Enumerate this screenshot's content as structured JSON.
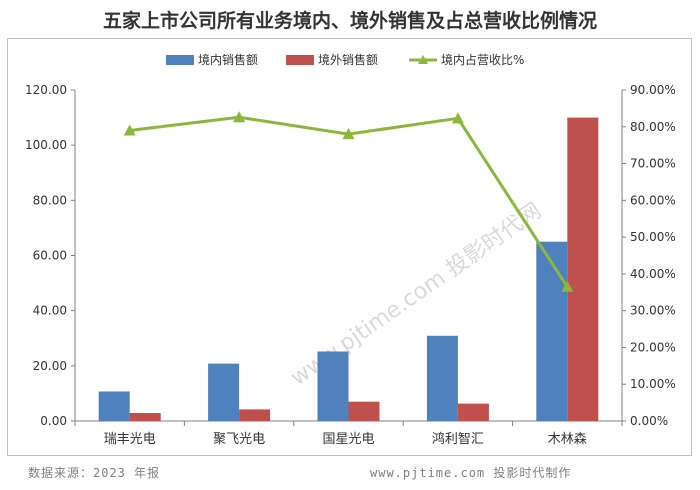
{
  "colors": {
    "domestic": "#4f81bd",
    "overseas": "#c0504d",
    "ratio": "#8db63c"
  },
  "footer": {
    "source": "数据来源：2023 年报",
    "credit": "www.pjtime.com 投影时代制作"
  },
  "watermark": "www.pjtime.com 投影时代网",
  "chart_data": {
    "type": "bar",
    "title": "五家上市公司所有业务境内、境外销售及占总营收比例情况",
    "categories": [
      "瑞丰光电",
      "聚飞光电",
      "国星光电",
      "鸿利智汇",
      "木林森"
    ],
    "series": [
      {
        "name": "境内销售额",
        "type": "bar",
        "axis": "left",
        "values": [
          10.7,
          20.8,
          25.2,
          30.9,
          65.0
        ]
      },
      {
        "name": "境外销售额",
        "type": "bar",
        "axis": "left",
        "values": [
          2.9,
          4.2,
          7.0,
          6.3,
          110.0
        ]
      },
      {
        "name": "境内占营收比%",
        "type": "line",
        "axis": "right",
        "values": [
          79.0,
          82.6,
          78.0,
          82.3,
          36.5
        ]
      }
    ],
    "ylim_left": [
      0,
      120
    ],
    "yticks_left": [
      "0.00",
      "20.00",
      "40.00",
      "60.00",
      "80.00",
      "100.00",
      "120.00"
    ],
    "ylim_right": [
      0,
      90
    ],
    "yticks_right": [
      "0.00%",
      "10.00%",
      "20.00%",
      "30.00%",
      "40.00%",
      "50.00%",
      "60.00%",
      "70.00%",
      "80.00%",
      "90.00%"
    ],
    "legend_position": "top",
    "grid": false
  }
}
